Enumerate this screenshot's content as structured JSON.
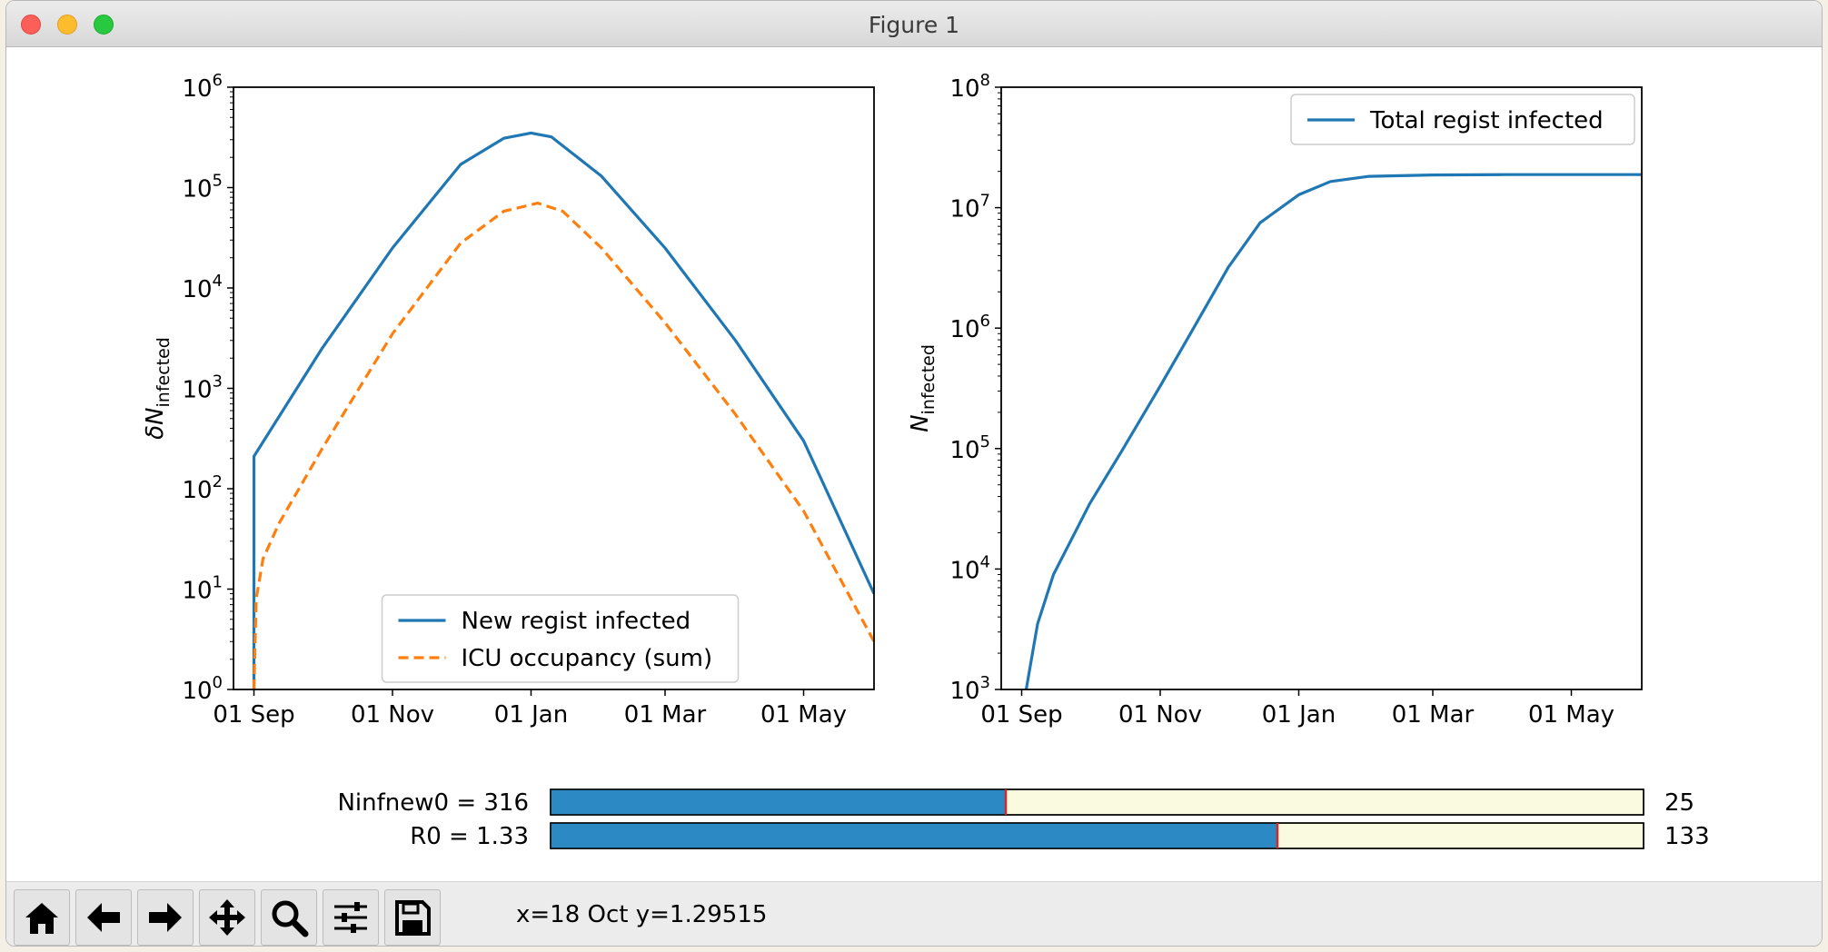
{
  "window": {
    "title": "Figure 1"
  },
  "chart_data": [
    {
      "type": "line",
      "yscale": "log",
      "ylabel_main": "δN",
      "ylabel_sub": "infected",
      "ylim": [
        1,
        1000000
      ],
      "yticks": [
        {
          "base": "10",
          "exp": "0"
        },
        {
          "base": "10",
          "exp": "1"
        },
        {
          "base": "10",
          "exp": "2"
        },
        {
          "base": "10",
          "exp": "3"
        },
        {
          "base": "10",
          "exp": "4"
        },
        {
          "base": "10",
          "exp": "5"
        },
        {
          "base": "10",
          "exp": "6"
        }
      ],
      "xlim": [
        "2020-08-23",
        "2021-06-01"
      ],
      "xticks": [
        "01 Sep",
        "01 Nov",
        "01 Jan",
        "01 Mar",
        "01 May"
      ],
      "legend_position": "lower center",
      "series": [
        {
          "name": "New regist infected",
          "color": "#1f77b4",
          "style": "solid",
          "x": [
            "2020-09-01",
            "2020-09-01",
            "2020-10-01",
            "2020-11-01",
            "2020-12-01",
            "2020-12-20",
            "2021-01-01",
            "2021-01-10",
            "2021-02-01",
            "2021-03-01",
            "2021-04-01",
            "2021-05-01",
            "2021-06-01"
          ],
          "y": [
            1,
            210,
            2500,
            25000,
            170000,
            310000,
            350000,
            320000,
            130000,
            25000,
            3000,
            300,
            9
          ]
        },
        {
          "name": "ICU occupancy (sum)",
          "color": "#ff7f0e",
          "style": "dashed",
          "x": [
            "2020-09-01",
            "2020-09-02",
            "2020-09-05",
            "2020-09-12",
            "2020-10-01",
            "2020-11-01",
            "2020-12-01",
            "2020-12-20",
            "2021-01-04",
            "2021-01-15",
            "2021-02-01",
            "2021-03-01",
            "2021-04-01",
            "2021-05-01",
            "2021-06-01"
          ],
          "y": [
            1,
            8,
            20,
            45,
            250,
            3500,
            28000,
            58000,
            70000,
            58000,
            25000,
            4500,
            550,
            60,
            3
          ]
        }
      ]
    },
    {
      "type": "line",
      "yscale": "log",
      "ylabel_main": "N",
      "ylabel_sub": "infected",
      "ylim": [
        1000,
        100000000
      ],
      "yticks": [
        {
          "base": "10",
          "exp": "3"
        },
        {
          "base": "10",
          "exp": "4"
        },
        {
          "base": "10",
          "exp": "5"
        },
        {
          "base": "10",
          "exp": "6"
        },
        {
          "base": "10",
          "exp": "7"
        },
        {
          "base": "10",
          "exp": "8"
        }
      ],
      "xlim": [
        "2020-08-23",
        "2021-06-01"
      ],
      "xticks": [
        "01 Sep",
        "01 Nov",
        "01 Jan",
        "01 Mar",
        "01 May"
      ],
      "legend_position": "upper right",
      "series": [
        {
          "name": "Total regist infected",
          "color": "#1f77b4",
          "style": "solid",
          "x": [
            "2020-09-03",
            "2020-09-08",
            "2020-09-15",
            "2020-10-01",
            "2020-10-15",
            "2020-11-01",
            "2020-11-15",
            "2020-12-01",
            "2020-12-15",
            "2021-01-01",
            "2021-01-15",
            "2021-02-01",
            "2021-03-01",
            "2021-04-01",
            "2021-06-01"
          ],
          "y": [
            1000,
            3500,
            9000,
            35000,
            95000,
            330000,
            950000,
            3200000,
            7500000,
            12800000,
            16500000,
            18200000,
            18700000,
            18800000,
            18800000
          ]
        }
      ]
    }
  ],
  "sliders": [
    {
      "label": "Ninfnew0 = 316",
      "value_fraction": 0.4165,
      "valmax_label": "25",
      "fill_color": "#2c89c3",
      "track_color": "#fafae0",
      "marker_color": "#d62728"
    },
    {
      "label": "R0 =   1.33",
      "value_fraction": 0.665,
      "valmax_label": "133",
      "fill_color": "#2c89c3",
      "track_color": "#fafae0",
      "marker_color": "#d62728"
    }
  ],
  "toolbar": {
    "buttons": [
      "home-icon",
      "back-arrow-icon",
      "forward-arrow-icon",
      "pan-icon",
      "zoom-icon",
      "configure-subplots-icon",
      "save-icon"
    ],
    "coords_text": "x=18 Oct y=1.29515"
  }
}
